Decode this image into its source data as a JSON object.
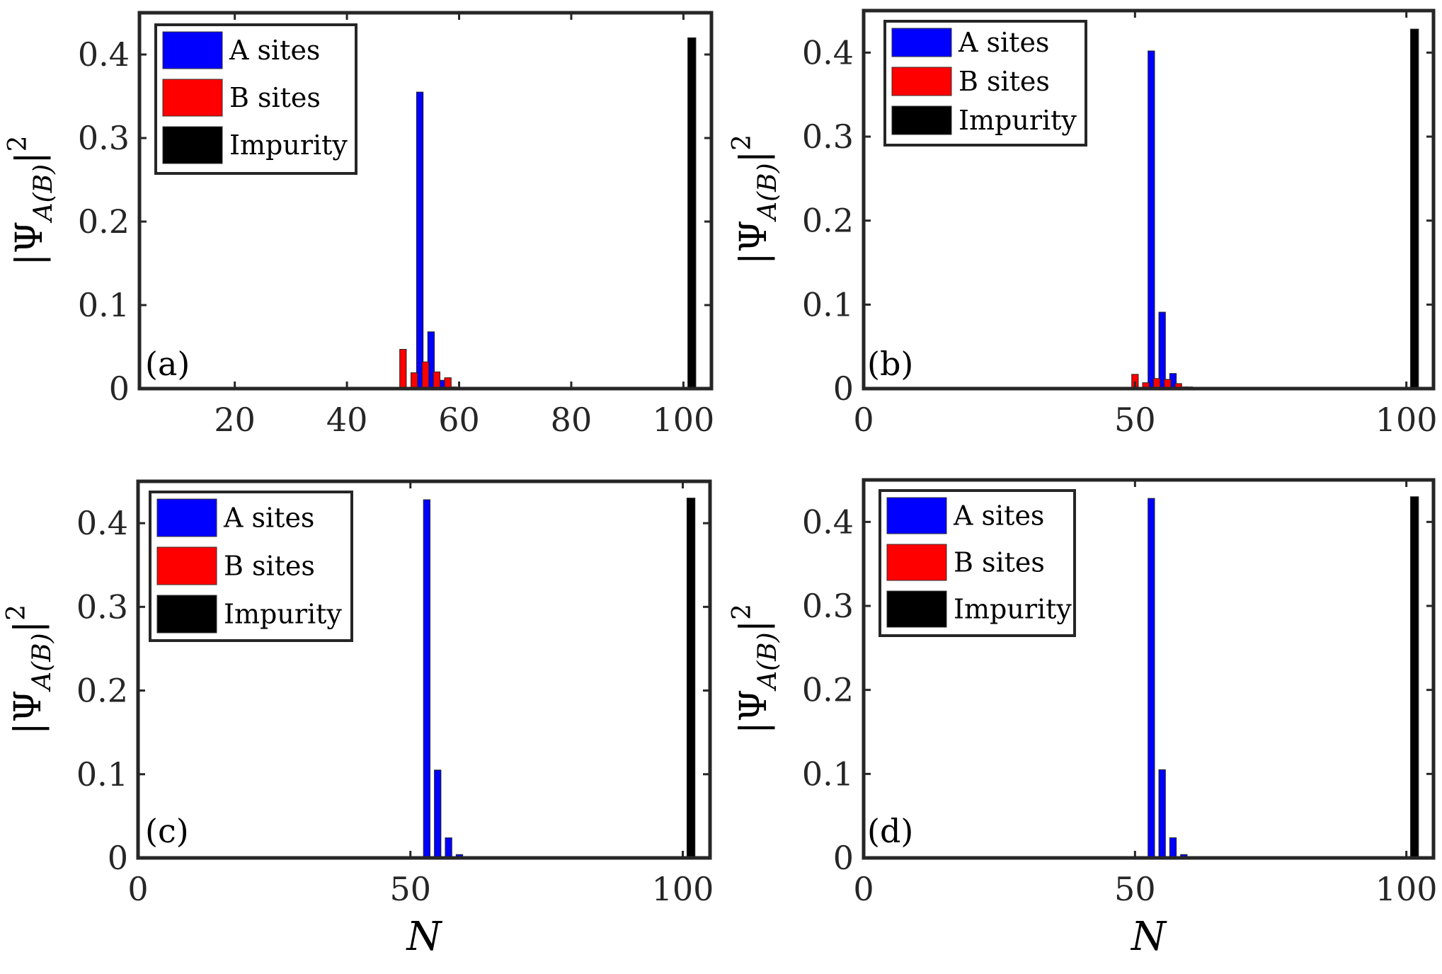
{
  "figure": {
    "ylabel_base": "|Ψ",
    "ylabel_sub": "A(B)",
    "ylabel_tail": "|",
    "ylabel_sup": "2",
    "xlabel": "N"
  },
  "legend_labels": [
    "A sites",
    "B sites",
    "Impurity"
  ],
  "colors": {
    "A": "#0000ff",
    "B": "#ff0000",
    "Impurity": "#000000",
    "axis": "#262626"
  },
  "chart_data": [
    {
      "id": "a",
      "type": "bar",
      "panel_label": "(a)",
      "xlim": [
        3,
        105
      ],
      "ylim": [
        0,
        0.45
      ],
      "xticks": [
        20,
        40,
        60,
        80,
        100
      ],
      "yticks": [
        0,
        0.1,
        0.2,
        0.3,
        0.4
      ],
      "ytick_labels": [
        "0",
        "0.1",
        "0.2",
        "0.3",
        "0.4"
      ],
      "show_xlabel": false,
      "series": [
        {
          "name": "A sites",
          "key": "A",
          "x": [
            53,
            55,
            57,
            59
          ],
          "values": [
            0.355,
            0.068,
            0.01,
            0.002
          ]
        },
        {
          "name": "B sites",
          "key": "B",
          "x": [
            50,
            52,
            54,
            56,
            58
          ],
          "values": [
            0.047,
            0.019,
            0.032,
            0.02,
            0.013
          ]
        },
        {
          "name": "Impurity",
          "key": "Impurity",
          "x": [
            101.5
          ],
          "values": [
            0.42
          ]
        }
      ]
    },
    {
      "id": "b",
      "type": "bar",
      "panel_label": "(b)",
      "xlim": [
        0,
        105
      ],
      "ylim": [
        0,
        0.45
      ],
      "xticks": [
        0,
        50,
        100
      ],
      "yticks": [
        0,
        0.1,
        0.2,
        0.3,
        0.4
      ],
      "ytick_labels": [
        "0",
        "0.1",
        "0.2",
        "0.3",
        "0.4"
      ],
      "show_xlabel": false,
      "series": [
        {
          "name": "A sites",
          "key": "A",
          "x": [
            53,
            55,
            57,
            59
          ],
          "values": [
            0.402,
            0.091,
            0.018,
            0.002
          ]
        },
        {
          "name": "B sites",
          "key": "B",
          "x": [
            50,
            52,
            54,
            56,
            58,
            60
          ],
          "values": [
            0.017,
            0.007,
            0.012,
            0.011,
            0.006,
            0.002
          ]
        },
        {
          "name": "Impurity",
          "key": "Impurity",
          "x": [
            101.5
          ],
          "values": [
            0.428
          ]
        }
      ]
    },
    {
      "id": "c",
      "type": "bar",
      "panel_label": "(c)",
      "xlim": [
        0,
        105
      ],
      "ylim": [
        0,
        0.45
      ],
      "xticks": [
        0,
        50,
        100
      ],
      "yticks": [
        0,
        0.1,
        0.2,
        0.3,
        0.4
      ],
      "ytick_labels": [
        "0",
        "0.1",
        "0.2",
        "0.3",
        "0.4"
      ],
      "show_xlabel": true,
      "series": [
        {
          "name": "A sites",
          "key": "A",
          "x": [
            53,
            55,
            57,
            59
          ],
          "values": [
            0.428,
            0.105,
            0.024,
            0.004
          ]
        },
        {
          "name": "B sites",
          "key": "B",
          "x": [],
          "values": []
        },
        {
          "name": "Impurity",
          "key": "Impurity",
          "x": [
            101.5
          ],
          "values": [
            0.43
          ]
        }
      ]
    },
    {
      "id": "d",
      "type": "bar",
      "panel_label": "(d)",
      "xlim": [
        0,
        105
      ],
      "ylim": [
        0,
        0.45
      ],
      "xticks": [
        0,
        50,
        100
      ],
      "yticks": [
        0,
        0.1,
        0.2,
        0.3,
        0.4
      ],
      "ytick_labels": [
        "0",
        "0.1",
        "0.2",
        "0.3",
        "0.4"
      ],
      "show_xlabel": true,
      "series": [
        {
          "name": "A sites",
          "key": "A",
          "x": [
            53,
            55,
            57,
            59
          ],
          "values": [
            0.428,
            0.105,
            0.024,
            0.004
          ]
        },
        {
          "name": "B sites",
          "key": "B",
          "x": [],
          "values": []
        },
        {
          "name": "Impurity",
          "key": "Impurity",
          "x": [
            101.5
          ],
          "values": [
            0.43
          ]
        }
      ]
    }
  ]
}
